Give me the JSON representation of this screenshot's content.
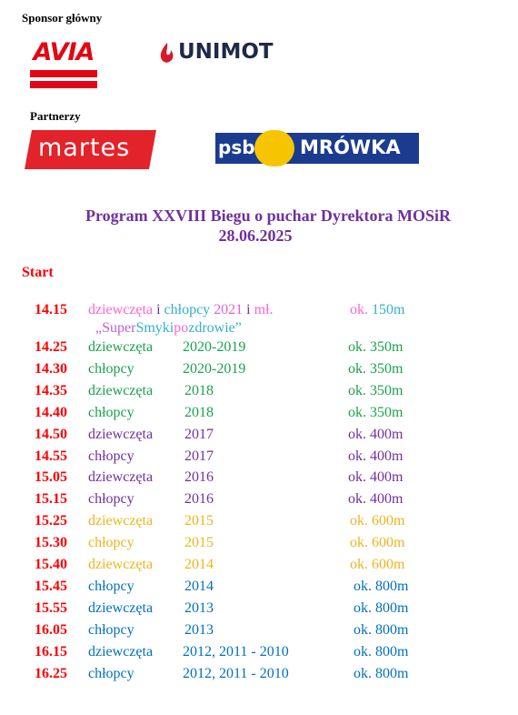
{
  "sponsor": {
    "label": "Sponsor główny",
    "logos": [
      "AVIA",
      "UNIMOT"
    ]
  },
  "partners": {
    "label": "Partnerzy",
    "logos": [
      "martes",
      "psb",
      "MRÓWKA"
    ]
  },
  "header": {
    "title": "Program XXVIII Biegu o puchar Dyrektora MOSiR",
    "date": "28.06.2025",
    "color": "#7030a0"
  },
  "start_label": "Start",
  "time_color": "#ff0000",
  "first_row": {
    "time": "14.15",
    "category": [
      {
        "text": "dziewczęta",
        "color": "#ff66cc"
      },
      {
        "text": "i",
        "color": "#7030a0"
      },
      {
        "text": "chłopcy",
        "color": "#31b0c8"
      },
      {
        "text": "2021",
        "color": "#e060e0"
      },
      {
        "text": "i",
        "color": "#7030a0"
      },
      {
        "text": "mł.",
        "color": "#ff66cc"
      }
    ],
    "subtitle": [
      {
        "text": "„Super",
        "color": "#c060d0"
      },
      {
        "text": "Smyki",
        "color": "#31b0c8"
      },
      {
        "text": "po",
        "color": "#ff66cc"
      },
      {
        "text": "zdrowie”",
        "color": "#31b0c8"
      }
    ],
    "distance": [
      {
        "text": "ok.",
        "color": "#ff66cc"
      },
      {
        "text": "150m",
        "color": "#31b0c8"
      }
    ]
  },
  "rows": [
    {
      "time": "14.25",
      "category": "dziewczęta",
      "year": "2020-2019",
      "distance": "ok. 350m",
      "color": "#1aa34a"
    },
    {
      "time": "14.30",
      "category": "chłopcy",
      "year": "2020-2019",
      "distance": "ok. 350m",
      "color": "#1aa34a"
    },
    {
      "time": "14.35",
      "category": "dziewczęta",
      "year": "2018",
      "distance": "ok. 350m",
      "color": "#1aa34a"
    },
    {
      "time": "14.40",
      "category": "chłopcy",
      "year": "2018",
      "distance": "ok. 350m",
      "color": "#1aa34a"
    },
    {
      "time": "14.50",
      "category": "dziewczęta",
      "year": "2017",
      "distance": "ok. 400m",
      "color": "#7030a0"
    },
    {
      "time": "14.55",
      "category": "chłopcy",
      "year": "2017",
      "distance": "ok. 400m",
      "color": "#7030a0"
    },
    {
      "time": "15.05",
      "category": "dziewczęta",
      "year": "2016",
      "distance": "ok. 400m",
      "color": "#7030a0"
    },
    {
      "time": "15.15",
      "category": "chłopcy",
      "year": "2016",
      "distance": "ok. 400m",
      "color": "#7030a0"
    },
    {
      "time": "15.25",
      "category": "dziewczęta",
      "year": "2015",
      "distance": "ok. 600m",
      "color": "#f0b41c"
    },
    {
      "time": "15.30",
      "category": "chłopcy",
      "year": "2015",
      "distance": "ok. 600m",
      "color": "#f0b41c"
    },
    {
      "time": "15.40",
      "category": "dziewczęta",
      "year": "2014",
      "distance": "ok. 600m",
      "color": "#f0b41c"
    },
    {
      "time": "15.45",
      "category": "chłopcy",
      "year": "2014",
      "distance": "ok. 800m",
      "color": "#0070c0"
    },
    {
      "time": "15.55",
      "category": "dziewczęta",
      "year": "2013",
      "distance": "ok. 800m",
      "color": "#0070c0"
    },
    {
      "time": "16.05",
      "category": "chłopcy",
      "year": "2013",
      "distance": "ok. 800m",
      "color": "#0070c0"
    },
    {
      "time": "16.15",
      "category": "dziewczęta",
      "year": "2012, 2011 - 2010",
      "distance": "ok. 800m",
      "color": "#0070c0"
    },
    {
      "time": "16.25",
      "category": "chłopcy",
      "year": "2012, 2011 - 2010",
      "distance": "ok. 800m",
      "color": "#0070c0"
    }
  ]
}
